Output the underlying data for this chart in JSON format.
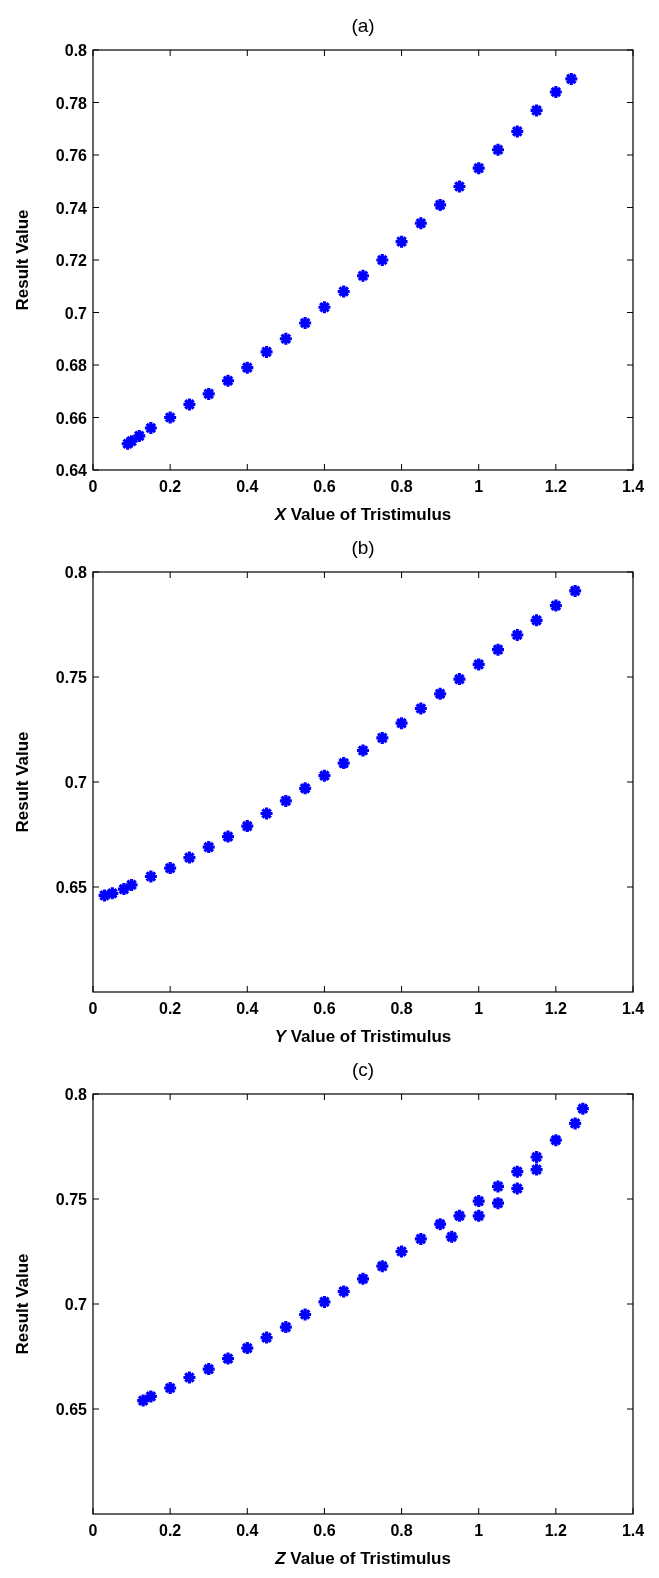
{
  "chart_data": [
    {
      "type": "scatter",
      "title": "(a)",
      "xlabel": "X Value of Tristimulus",
      "ylabel": "Result Value",
      "xlim": [
        0,
        1.4
      ],
      "xticks": [
        0,
        0.2,
        0.4,
        0.6,
        0.8,
        1,
        1.2,
        1.4
      ],
      "ylim": [
        0.64,
        0.8
      ],
      "yticks": [
        0.64,
        0.66,
        0.68,
        0.7,
        0.72,
        0.74,
        0.76,
        0.78,
        0.8
      ],
      "marker": "cross",
      "grid": false,
      "series": [
        {
          "color": "#0000ff",
          "x": [
            0.09,
            0.1,
            0.12,
            0.15,
            0.2,
            0.25,
            0.3,
            0.35,
            0.4,
            0.45,
            0.5,
            0.55,
            0.6,
            0.65,
            0.7,
            0.75,
            0.8,
            0.85,
            0.9,
            0.95,
            1.0,
            1.05,
            1.1,
            1.15,
            1.2,
            1.24
          ],
          "values": [
            0.65,
            0.651,
            0.653,
            0.656,
            0.66,
            0.665,
            0.669,
            0.674,
            0.679,
            0.685,
            0.69,
            0.696,
            0.702,
            0.708,
            0.714,
            0.72,
            0.727,
            0.734,
            0.741,
            0.748,
            0.755,
            0.762,
            0.769,
            0.777,
            0.784,
            0.789
          ]
        }
      ]
    },
    {
      "type": "scatter",
      "title": "(b)",
      "xlabel": "Y Value of Tristimulus",
      "ylabel": "Result Value",
      "xlim": [
        0,
        1.4
      ],
      "xticks": [
        0,
        0.2,
        0.4,
        0.6,
        0.8,
        1,
        1.2,
        1.4
      ],
      "ylim": [
        0.6,
        0.8
      ],
      "yticks": [
        0.65,
        0.7,
        0.75,
        0.8
      ],
      "marker": "cross",
      "grid": false,
      "series": [
        {
          "color": "#0000ff",
          "x": [
            0.03,
            0.05,
            0.08,
            0.1,
            0.15,
            0.2,
            0.25,
            0.3,
            0.35,
            0.4,
            0.45,
            0.5,
            0.55,
            0.6,
            0.65,
            0.7,
            0.75,
            0.8,
            0.85,
            0.9,
            0.95,
            1.0,
            1.05,
            1.1,
            1.15,
            1.2,
            1.25
          ],
          "values": [
            0.646,
            0.647,
            0.649,
            0.651,
            0.655,
            0.659,
            0.664,
            0.669,
            0.674,
            0.679,
            0.685,
            0.691,
            0.697,
            0.703,
            0.709,
            0.715,
            0.721,
            0.728,
            0.735,
            0.742,
            0.749,
            0.756,
            0.763,
            0.77,
            0.777,
            0.784,
            0.791
          ]
        }
      ]
    },
    {
      "type": "scatter",
      "title": "(c)",
      "xlabel": "Z Value of Tristimulus",
      "ylabel": "Result Value",
      "xlim": [
        0,
        1.4
      ],
      "xticks": [
        0,
        0.2,
        0.4,
        0.6,
        0.8,
        1,
        1.2,
        1.4
      ],
      "ylim": [
        0.6,
        0.8
      ],
      "yticks": [
        0.65,
        0.7,
        0.75,
        0.8
      ],
      "marker": "cross",
      "grid": false,
      "series": [
        {
          "color": "#0000ff",
          "x": [
            0.13,
            0.15,
            0.2,
            0.25,
            0.3,
            0.35,
            0.4,
            0.45,
            0.5,
            0.55,
            0.6,
            0.65,
            0.7,
            0.75,
            0.8,
            0.85,
            0.9,
            0.93,
            0.95,
            1.0,
            1.0,
            1.05,
            1.05,
            1.1,
            1.1,
            1.15,
            1.15,
            1.2,
            1.25,
            1.27
          ],
          "values": [
            0.654,
            0.656,
            0.66,
            0.665,
            0.669,
            0.674,
            0.679,
            0.684,
            0.689,
            0.695,
            0.701,
            0.706,
            0.712,
            0.718,
            0.725,
            0.731,
            0.738,
            0.732,
            0.742,
            0.749,
            0.742,
            0.756,
            0.748,
            0.763,
            0.755,
            0.77,
            0.764,
            0.778,
            0.786,
            0.793
          ]
        }
      ]
    }
  ]
}
